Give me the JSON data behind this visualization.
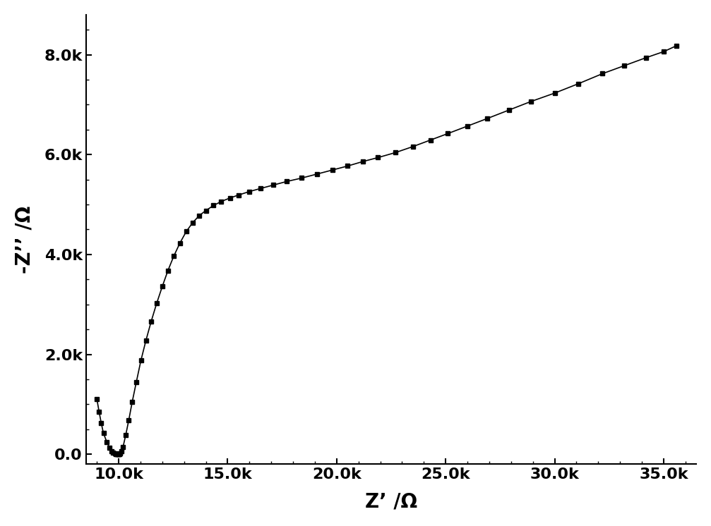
{
  "title": "",
  "xlabel": "Z’ /Ω",
  "ylabel": "-Z’’ /Ω",
  "xlim": [
    8500,
    36500
  ],
  "ylim": [
    -200,
    8800
  ],
  "xticks": [
    10000,
    15000,
    20000,
    25000,
    30000,
    35000
  ],
  "yticks": [
    0,
    2000,
    4000,
    6000,
    8000
  ],
  "xticklabels": [
    "10.0k",
    "15.0k",
    "20.0k",
    "25.0k",
    "30.0k",
    "35.0k"
  ],
  "yticklabels": [
    "0.0",
    "2.0k",
    "4.0k",
    "6.0k",
    "8.0k"
  ],
  "line_color": "#000000",
  "marker_color": "#000000",
  "marker": "s",
  "markersize": 5,
  "linewidth": 1.2,
  "background_color": "#ffffff",
  "x_data": [
    9000,
    9100,
    9200,
    9300,
    9450,
    9580,
    9680,
    9750,
    9820,
    9870,
    9910,
    9940,
    9965,
    9985,
    10000,
    10020,
    10060,
    10120,
    10200,
    10320,
    10460,
    10620,
    10810,
    11020,
    11250,
    11490,
    11740,
    12000,
    12260,
    12530,
    12810,
    13100,
    13400,
    13700,
    14000,
    14350,
    14700,
    15100,
    15500,
    16000,
    16500,
    17100,
    17700,
    18400,
    19100,
    19800,
    20500,
    21200,
    21900,
    22700,
    23500,
    24300,
    25100,
    26000,
    26900,
    27900,
    28900,
    30000,
    31100,
    32200,
    33200,
    34200,
    35000,
    35600
  ],
  "y_data": [
    1100,
    850,
    620,
    420,
    250,
    130,
    65,
    35,
    18,
    10,
    5,
    3,
    2,
    1,
    2,
    5,
    20,
    60,
    150,
    380,
    680,
    1050,
    1450,
    1880,
    2280,
    2660,
    3020,
    3360,
    3680,
    3970,
    4230,
    4460,
    4640,
    4780,
    4880,
    4980,
    5060,
    5130,
    5190,
    5260,
    5320,
    5390,
    5460,
    5530,
    5610,
    5690,
    5770,
    5860,
    5940,
    6040,
    6160,
    6290,
    6420,
    6570,
    6720,
    6890,
    7060,
    7230,
    7420,
    7620,
    7780,
    7940,
    8060,
    8180
  ],
  "tick_fontsize": 16,
  "label_fontsize": 20
}
